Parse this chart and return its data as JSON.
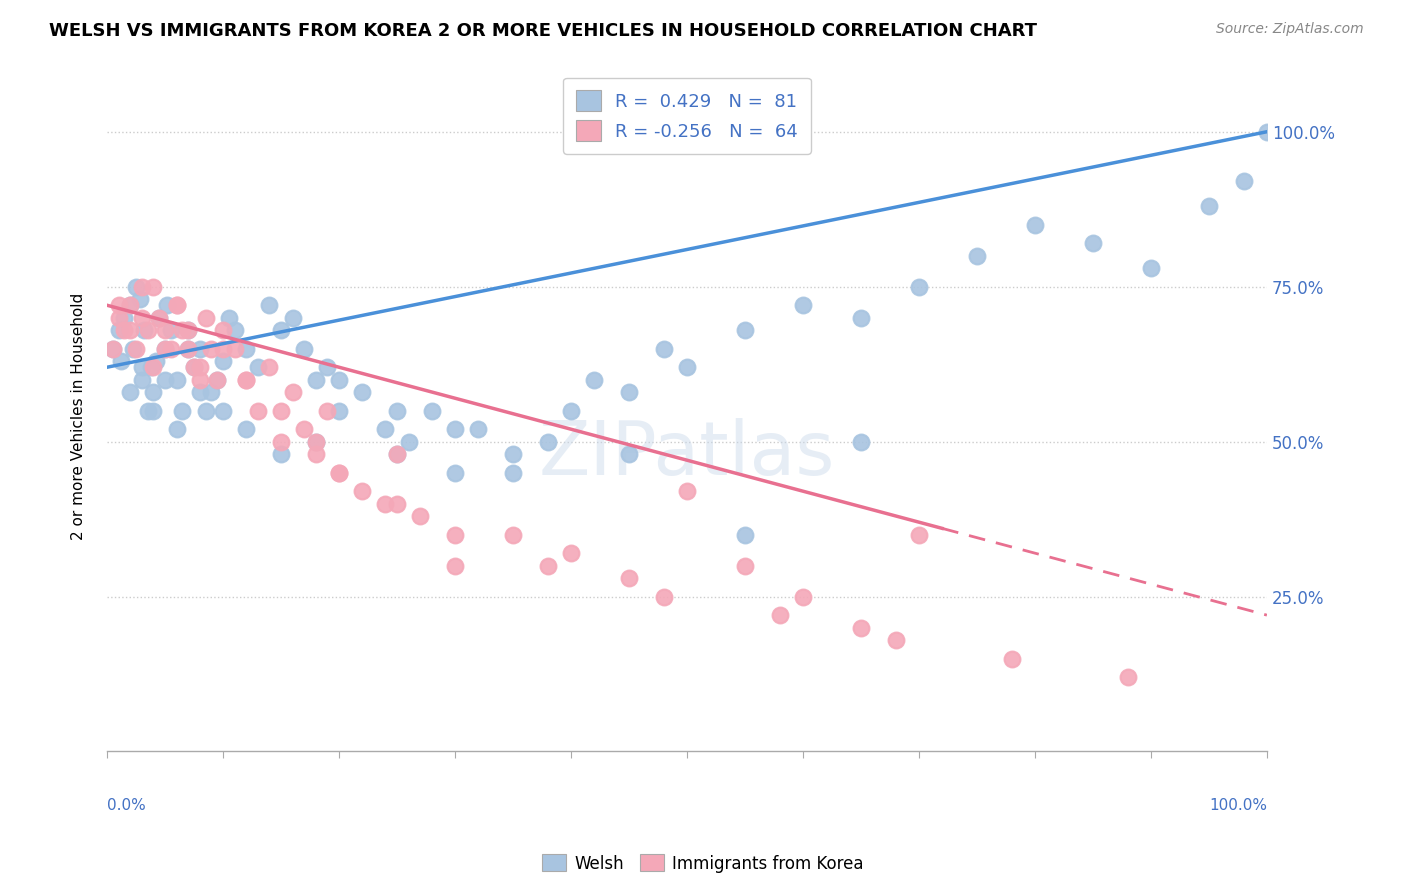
{
  "title": "WELSH VS IMMIGRANTS FROM KOREA 2 OR MORE VEHICLES IN HOUSEHOLD CORRELATION CHART",
  "source": "Source: ZipAtlas.com",
  "ylabel": "2 or more Vehicles in Household",
  "welsh_R": 0.429,
  "welsh_N": 81,
  "korean_R": -0.256,
  "korean_N": 64,
  "welsh_color": "#a8c4e0",
  "korean_color": "#f4a8b8",
  "welsh_line_color": "#4a90d9",
  "korean_line_color": "#e87090",
  "legend_text_color": "#4472c4",
  "right_axis_color": "#4472c4",
  "background_color": "#ffffff",
  "welsh_scatter_x": [
    0.5,
    1.0,
    1.2,
    1.5,
    2.0,
    2.2,
    2.5,
    2.8,
    3.0,
    3.2,
    3.5,
    3.8,
    4.0,
    4.2,
    4.5,
    5.0,
    5.2,
    5.5,
    6.0,
    6.5,
    7.0,
    7.5,
    8.0,
    8.5,
    9.0,
    9.5,
    10.0,
    10.5,
    11.0,
    12.0,
    13.0,
    14.0,
    15.0,
    16.0,
    17.0,
    18.0,
    19.0,
    20.0,
    22.0,
    24.0,
    25.0,
    26.0,
    28.0,
    30.0,
    32.0,
    35.0,
    38.0,
    40.0,
    42.0,
    45.0,
    48.0,
    50.0,
    55.0,
    60.0,
    65.0,
    70.0,
    75.0,
    80.0,
    85.0,
    90.0,
    95.0,
    98.0,
    100.0,
    2.0,
    3.0,
    4.0,
    5.0,
    6.0,
    7.0,
    8.0,
    10.0,
    12.0,
    15.0,
    18.0,
    20.0,
    25.0,
    30.0,
    35.0,
    45.0,
    55.0,
    65.0
  ],
  "welsh_scatter_y": [
    65,
    68,
    63,
    70,
    72,
    65,
    75,
    73,
    60,
    68,
    55,
    62,
    58,
    63,
    70,
    65,
    72,
    68,
    60,
    55,
    68,
    62,
    65,
    55,
    58,
    60,
    63,
    70,
    68,
    65,
    62,
    72,
    68,
    70,
    65,
    60,
    62,
    55,
    58,
    52,
    48,
    50,
    55,
    45,
    52,
    48,
    50,
    55,
    60,
    58,
    65,
    62,
    68,
    72,
    70,
    75,
    80,
    85,
    82,
    78,
    88,
    92,
    100,
    58,
    62,
    55,
    60,
    52,
    65,
    58,
    55,
    52,
    48,
    50,
    60,
    55,
    52,
    45,
    48,
    35,
    50
  ],
  "korean_scatter_x": [
    0.5,
    1.0,
    1.5,
    2.0,
    2.5,
    3.0,
    3.5,
    4.0,
    4.5,
    5.0,
    5.5,
    6.0,
    6.5,
    7.0,
    7.5,
    8.0,
    8.5,
    9.0,
    9.5,
    10.0,
    11.0,
    12.0,
    13.0,
    14.0,
    15.0,
    16.0,
    17.0,
    18.0,
    19.0,
    20.0,
    22.0,
    24.0,
    25.0,
    27.0,
    30.0,
    35.0,
    40.0,
    45.0,
    50.0,
    55.0,
    60.0,
    65.0,
    70.0,
    1.0,
    2.0,
    3.0,
    4.0,
    5.0,
    6.0,
    7.0,
    8.0,
    10.0,
    12.0,
    15.0,
    18.0,
    20.0,
    25.0,
    30.0,
    38.0,
    48.0,
    58.0,
    68.0,
    78.0,
    88.0
  ],
  "korean_scatter_y": [
    65,
    70,
    68,
    72,
    65,
    75,
    68,
    62,
    70,
    68,
    65,
    72,
    68,
    65,
    62,
    60,
    70,
    65,
    60,
    68,
    65,
    60,
    55,
    62,
    50,
    58,
    52,
    48,
    55,
    45,
    42,
    40,
    48,
    38,
    30,
    35,
    32,
    28,
    42,
    30,
    25,
    20,
    35,
    72,
    68,
    70,
    75,
    65,
    72,
    68,
    62,
    65,
    60,
    55,
    50,
    45,
    40,
    35,
    30,
    25,
    22,
    18,
    15,
    12
  ],
  "welsh_trend_x0": 0,
  "welsh_trend_x1": 100,
  "welsh_trend_y0": 62,
  "welsh_trend_y1": 100,
  "korean_trend_x0": 0,
  "korean_trend_x1": 100,
  "korean_trend_y0": 72,
  "korean_trend_y1": 22,
  "korean_dash_start_x": 72,
  "yaxis_ticks": [
    25,
    50,
    75,
    100
  ],
  "yaxis_labels": [
    "25.0%",
    "50.0%",
    "75.0%",
    "100.0%"
  ],
  "ylim": [
    0,
    108
  ],
  "xlim": [
    0,
    100
  ]
}
